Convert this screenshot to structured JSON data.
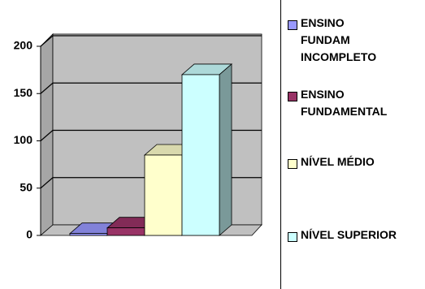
{
  "chart_data": {
    "type": "bar3d",
    "categories": [
      null
    ],
    "series": [
      {
        "name": "ENSINO FUNDAM INCOMPLETO",
        "color": "#9999ff",
        "values": [
          2
        ]
      },
      {
        "name": "ENSINO FUNDAMENTAL",
        "color": "#993366",
        "values": [
          8
        ]
      },
      {
        "name": "NÍVEL MÉDIO",
        "color": "#ffffcc",
        "values": [
          85
        ]
      },
      {
        "name": "NÍVEL SUPERIOR",
        "color": "#ccffff",
        "values": [
          170
        ]
      }
    ],
    "ylim": [
      0,
      200
    ],
    "yticks": [
      0,
      50,
      100,
      150,
      200
    ],
    "grid": true,
    "legend": "right"
  }
}
